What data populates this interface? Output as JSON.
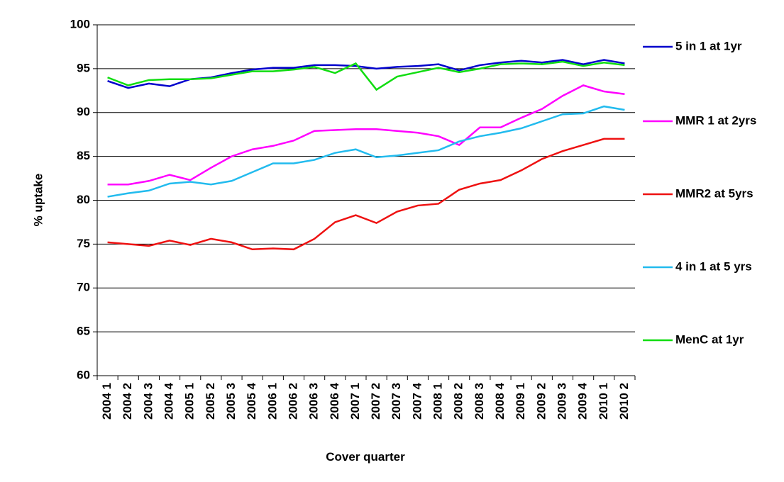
{
  "chart_data": {
    "type": "line",
    "x_label": "Cover quarter",
    "y_label": "% uptake",
    "categories": [
      "2004 1",
      "2004 2",
      "2004 3",
      "2004 4",
      "2005 1",
      "2005 2",
      "2005 3",
      "2005 4",
      "2006 1",
      "2006 2",
      "2006 3",
      "2006 4",
      "2007 1",
      "2007 2",
      "2007 3",
      "2007 4",
      "2008 1",
      "2008 2",
      "2008 3",
      "2008 4",
      "2009 1",
      "2009 2",
      "2009 3",
      "2009 4",
      "2010 1",
      "2010 2"
    ],
    "series": [
      {
        "name": "5 in 1 at 1yr",
        "color": "#0000cc",
        "values": [
          93.6,
          92.8,
          93.3,
          93.0,
          93.8,
          94.0,
          94.5,
          94.9,
          95.1,
          95.1,
          95.4,
          95.4,
          95.3,
          95.0,
          95.2,
          95.3,
          95.5,
          94.8,
          95.4,
          95.7,
          95.9,
          95.7,
          96.0,
          95.5,
          96.0,
          95.6
        ]
      },
      {
        "name": "MMR 1 at 2yrs",
        "color": "#ff00ff",
        "values": [
          81.8,
          81.8,
          82.2,
          82.9,
          82.3,
          83.7,
          85.0,
          85.8,
          86.2,
          86.8,
          87.9,
          88.0,
          88.1,
          88.1,
          87.9,
          87.7,
          87.3,
          86.3,
          88.3,
          88.3,
          89.4,
          90.4,
          91.9,
          93.1,
          92.4,
          92.1
        ]
      },
      {
        "name": "MMR2 at 5yrs",
        "color": "#ee1111",
        "values": [
          75.2,
          75.0,
          74.8,
          75.4,
          74.9,
          75.6,
          75.2,
          74.4,
          74.5,
          74.4,
          75.6,
          77.5,
          78.3,
          77.4,
          78.7,
          79.4,
          79.6,
          81.2,
          81.9,
          82.3,
          83.4,
          84.7,
          85.6,
          86.3,
          87.0,
          87.0
        ]
      },
      {
        "name": "4 in 1 at 5 yrs",
        "color": "#22bbee",
        "values": [
          80.4,
          80.8,
          81.1,
          81.9,
          82.1,
          81.8,
          82.2,
          83.2,
          84.2,
          84.2,
          84.6,
          85.4,
          85.8,
          84.9,
          85.1,
          85.4,
          85.7,
          86.7,
          87.3,
          87.7,
          88.2,
          89.0,
          89.8,
          89.9,
          90.7,
          90.3
        ]
      },
      {
        "name": "MenC at 1yr",
        "color": "#11dd11",
        "values": [
          94.0,
          93.1,
          93.7,
          93.8,
          93.8,
          93.9,
          94.3,
          94.7,
          94.7,
          94.9,
          95.2,
          94.5,
          95.6,
          92.6,
          94.1,
          94.6,
          95.1,
          94.6,
          95.0,
          95.5,
          95.6,
          95.5,
          95.8,
          95.3,
          95.7,
          95.4
        ]
      }
    ],
    "ylim": [
      60,
      100
    ],
    "yticks": [
      60,
      65,
      70,
      75,
      80,
      85,
      90,
      95,
      100
    ],
    "grid": true,
    "legend": "right"
  }
}
